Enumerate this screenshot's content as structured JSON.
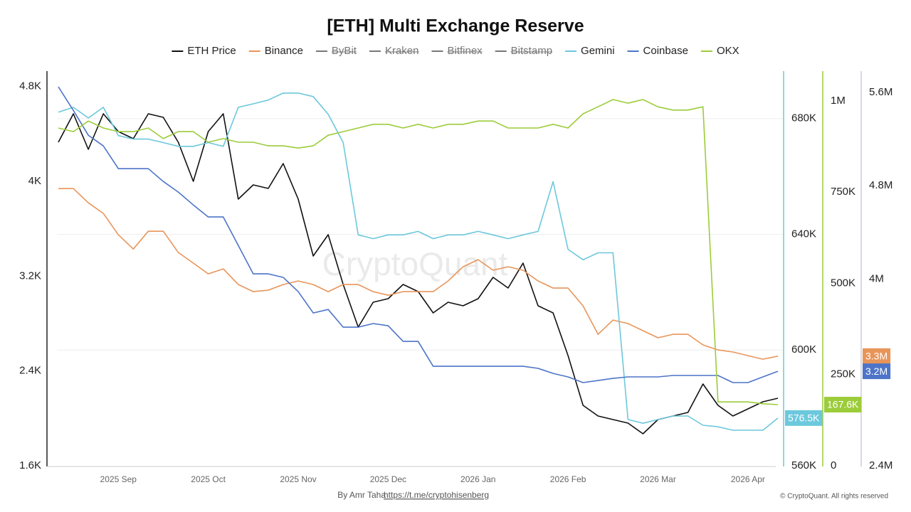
{
  "chart_data": {
    "type": "line",
    "title": "[ETH] Multi Exchange Reserve",
    "watermark": "CryptoQuant",
    "footer": {
      "author": "By Amr Taha",
      "link": "https://t.me/cryptohisenberg",
      "copyright": "© CryptoQuant. All rights reserved"
    },
    "categories": [
      null,
      null,
      null,
      null,
      "2025 Sep",
      null,
      null,
      null,
      null,
      null,
      "2025 Oct",
      null,
      null,
      null,
      null,
      null,
      "2025 Nov",
      null,
      null,
      null,
      null,
      null,
      "2025 Dec",
      null,
      null,
      null,
      null,
      null,
      "2026 Jan",
      null,
      null,
      null,
      null,
      null,
      "2026 Feb",
      null,
      null,
      null,
      null,
      null,
      "2026 Mar",
      null,
      null,
      null,
      null,
      null,
      "2026 Apr",
      null,
      null
    ],
    "ylim": [
      1600,
      4930
    ],
    "yticks": [
      {
        "value": 1600,
        "label": "1.6K"
      },
      {
        "value": 2400,
        "label": "2.4K"
      },
      {
        "value": 3200,
        "label": "3.2K"
      },
      {
        "value": 4000,
        "label": "4K"
      },
      {
        "value": 4800,
        "label": "4.8K"
      }
    ],
    "y2lim": [
      560000,
      696400
    ],
    "y2ticks": [
      {
        "value": 560000,
        "label": "560K"
      },
      {
        "value": 600000,
        "label": "600K"
      },
      {
        "value": 640000,
        "label": "640K"
      },
      {
        "value": 680000,
        "label": "680K"
      }
    ],
    "y3lim": [
      0,
      1081900
    ],
    "y3ticks": [
      0,
      {
        "value": 250000,
        "label": "250K"
      },
      {
        "value": 500000,
        "label": "500K"
      },
      {
        "value": 750000,
        "label": "750K"
      },
      {
        "value": 1000000,
        "label": "1M"
      }
    ],
    "y4lim": [
      2400000,
      5783000
    ],
    "y4ticks": [
      {
        "value": 2400000,
        "label": "2.4M"
      },
      {
        "value": 4000000,
        "label": "4M"
      },
      {
        "value": 4800000,
        "label": "4.8M"
      },
      {
        "value": 5600000,
        "label": "5.6M"
      }
    ],
    "grid": true,
    "series": [
      {
        "name": "ETH Price",
        "color": "#111111",
        "axis": "y",
        "values": [
          4330,
          4570,
          4270,
          4570,
          4420,
          4360,
          4570,
          4540,
          4330,
          4000,
          4420,
          4570,
          3850,
          3970,
          3940,
          4150,
          3850,
          3370,
          3550,
          3130,
          2770,
          2980,
          3010,
          3130,
          3070,
          2890,
          2980,
          2950,
          3010,
          3190,
          3100,
          3310,
          2950,
          2890,
          2530,
          2110,
          2020,
          1990,
          1960,
          1870,
          1990,
          2020,
          2050,
          2290,
          2110,
          2020,
          2080,
          2140,
          2170
        ]
      },
      {
        "name": "Binance",
        "color": "#e8955a",
        "axis": "y4",
        "values": [
          4776000,
          4776000,
          4654000,
          4563000,
          4380000,
          4258000,
          4410000,
          4410000,
          4228000,
          4137000,
          4045000,
          4088000,
          3954000,
          3893000,
          3905000,
          3954000,
          3984000,
          3954000,
          3893000,
          3954000,
          3954000,
          3893000,
          3862000,
          3893000,
          3893000,
          3893000,
          3984000,
          4106000,
          4167000,
          4076000,
          4106000,
          4076000,
          3984000,
          3923000,
          3923000,
          3771000,
          3527000,
          3649000,
          3619000,
          3558000,
          3497000,
          3527000,
          3527000,
          3436000,
          3393000,
          3375000,
          3344000,
          3314000,
          3340000
        ],
        "value_labels": [
          null,
          null,
          null,
          null,
          null,
          null,
          null,
          null,
          null,
          null,
          null,
          null,
          null,
          null,
          null,
          null,
          null,
          null,
          null,
          null,
          null,
          null,
          null,
          null,
          null,
          null,
          null,
          null,
          null,
          null,
          null,
          null,
          null,
          null,
          null,
          null,
          null,
          null,
          null,
          null,
          null,
          null,
          null,
          null,
          null,
          null,
          null,
          null,
          "3.3M"
        ]
      },
      {
        "name": "ByBit",
        "color": "#777777",
        "hidden": true
      },
      {
        "name": "Kraken",
        "color": "#777777",
        "hidden": true
      },
      {
        "name": "Bitfinex",
        "color": "#777777",
        "hidden": true
      },
      {
        "name": "Bitstamp",
        "color": "#777777",
        "hidden": true
      },
      {
        "name": "Gemini",
        "color": "#6cc8dc",
        "axis": "y2",
        "values": [
          682200,
          683900,
          680200,
          683900,
          674100,
          672900,
          672900,
          671700,
          670400,
          670400,
          671700,
          670400,
          683900,
          685100,
          686400,
          688800,
          688800,
          687600,
          681500,
          671700,
          639800,
          638500,
          639800,
          639800,
          641000,
          638500,
          639800,
          639800,
          641000,
          639800,
          638500,
          639800,
          641000,
          658200,
          634800,
          631200,
          633600,
          633600,
          576000,
          574700,
          576000,
          577200,
          577200,
          574000,
          573500,
          572300,
          572300,
          572300,
          576500
        ],
        "value_labels": [
          null,
          null,
          null,
          null,
          null,
          null,
          null,
          null,
          null,
          null,
          null,
          null,
          null,
          null,
          null,
          null,
          null,
          null,
          null,
          null,
          null,
          null,
          null,
          null,
          null,
          null,
          null,
          null,
          null,
          null,
          null,
          null,
          null,
          null,
          null,
          null,
          null,
          null,
          null,
          null,
          null,
          null,
          null,
          null,
          null,
          null,
          null,
          null,
          "576.5K"
        ]
      },
      {
        "name": "Coinbase",
        "color": "#4d74c8",
        "axis": "y4",
        "values": [
          5648000,
          5446000,
          5233000,
          5142000,
          4947000,
          4947000,
          4947000,
          4837000,
          4746000,
          4636000,
          4533000,
          4533000,
          4289000,
          4045000,
          4045000,
          4015000,
          3893000,
          3710000,
          3740000,
          3588000,
          3588000,
          3619000,
          3600000,
          3466000,
          3466000,
          3253000,
          3253000,
          3253000,
          3253000,
          3253000,
          3253000,
          3253000,
          3235000,
          3192000,
          3162000,
          3113000,
          3131000,
          3149000,
          3162000,
          3162000,
          3162000,
          3174000,
          3174000,
          3174000,
          3174000,
          3113000,
          3113000,
          3162000,
          3210000
        ],
        "value_labels": [
          null,
          null,
          null,
          null,
          null,
          null,
          null,
          null,
          null,
          null,
          null,
          null,
          null,
          null,
          null,
          null,
          null,
          null,
          null,
          null,
          null,
          null,
          null,
          null,
          null,
          null,
          null,
          null,
          null,
          null,
          null,
          null,
          null,
          null,
          null,
          null,
          null,
          null,
          null,
          null,
          null,
          null,
          null,
          null,
          null,
          null,
          null,
          null,
          "3.2M"
        ]
      },
      {
        "name": "OKX",
        "color": "#9ccc3a",
        "axis": "y3",
        "values": [
          926000,
          916000,
          945000,
          926000,
          916000,
          916000,
          926000,
          897000,
          916000,
          916000,
          887000,
          897000,
          887000,
          887000,
          877000,
          877000,
          871000,
          877000,
          906000,
          916000,
          926000,
          936000,
          936000,
          926000,
          936000,
          926000,
          936000,
          936000,
          945000,
          945000,
          926000,
          926000,
          926000,
          936000,
          926000,
          965000,
          984000,
          1004000,
          994000,
          1004000,
          984000,
          975000,
          975000,
          984000,
          175000,
          175000,
          175000,
          170000,
          167600
        ],
        "value_labels": [
          null,
          null,
          null,
          null,
          null,
          null,
          null,
          null,
          null,
          null,
          null,
          null,
          null,
          null,
          null,
          null,
          null,
          null,
          null,
          null,
          null,
          null,
          null,
          null,
          null,
          null,
          null,
          null,
          null,
          null,
          null,
          null,
          null,
          null,
          null,
          null,
          null,
          null,
          null,
          null,
          null,
          null,
          null,
          null,
          null,
          null,
          null,
          null,
          "167.6K"
        ]
      }
    ]
  }
}
